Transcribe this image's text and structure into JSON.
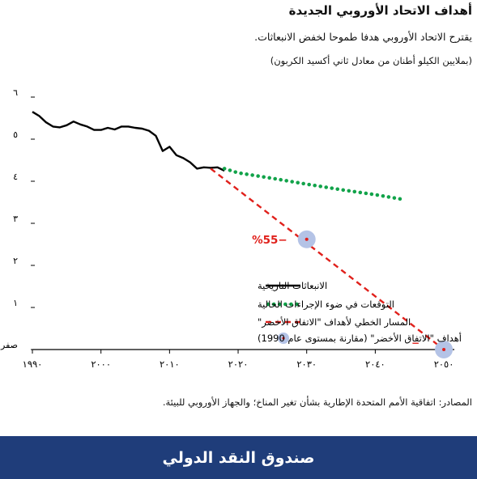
{
  "header": {
    "title": "أهداف الاتحاد الأوروبي الجديدة",
    "subtitle": "يقترح الاتحاد الأوروبي هدفا طموحا لخفض الانبعاثات.",
    "unit": "(بملايين الكيلو أطنان من معادل ثاني أكسيد الكربون)"
  },
  "chart_data": {
    "type": "line",
    "xlim": [
      1990,
      2052
    ],
    "ylim": [
      0,
      6
    ],
    "x_ticks": [
      1990,
      2000,
      2010,
      2020,
      2030,
      2040,
      2050
    ],
    "x_tick_labels": [
      "١٩٩٠",
      "٢٠٠٠",
      "٢٠١٠",
      "٢٠٢٠",
      "٢٠٣٠",
      "٢٠٤٠",
      "٢٠٥٠"
    ],
    "y_ticks": [
      0,
      1,
      2,
      3,
      4,
      5,
      6
    ],
    "y_tick_labels": [
      "صفر",
      "١",
      "٢",
      "٣",
      "٤",
      "٥",
      "٦"
    ],
    "series": [
      {
        "name": "الانبعاثات التاريخية",
        "style": "solid",
        "color": "#000000",
        "x": [
          1990,
          1991,
          1992,
          1993,
          1994,
          1995,
          1996,
          1997,
          1998,
          1999,
          2000,
          2001,
          2002,
          2003,
          2004,
          2005,
          2006,
          2007,
          2008,
          2009,
          2010,
          2011,
          2012,
          2013,
          2014,
          2015,
          2016,
          2017,
          2018
        ],
        "y": [
          5.65,
          5.55,
          5.4,
          5.3,
          5.28,
          5.33,
          5.42,
          5.35,
          5.3,
          5.22,
          5.22,
          5.27,
          5.23,
          5.3,
          5.3,
          5.27,
          5.25,
          5.2,
          5.08,
          4.72,
          4.82,
          4.62,
          4.55,
          4.45,
          4.3,
          4.33,
          4.32,
          4.33,
          4.25
        ]
      },
      {
        "name": "التوقعات في ضوء الإجراءات الحالية",
        "style": "dotted",
        "color": "#12a34a",
        "x": [
          2018,
          2020,
          2025,
          2030,
          2035,
          2040,
          2044
        ],
        "y": [
          4.3,
          4.2,
          4.07,
          3.93,
          3.8,
          3.68,
          3.57
        ]
      },
      {
        "name": "المسار الخطي لأهداف \"الاتفاق الأخضر\"",
        "style": "dashed",
        "color": "#e0201b",
        "x": [
          2016,
          2050
        ],
        "y": [
          4.3,
          0
        ]
      },
      {
        "name": "أهداف \"الاتفاق الأخضر\" (مقارنة بمستوى عام 1990)",
        "style": "marker",
        "color": "#b4c3e6",
        "x": [
          2030,
          2050
        ],
        "y": [
          2.62,
          0
        ]
      }
    ],
    "annotations": [
      {
        "text": "%55−",
        "x": 2030,
        "y": 2.62
      },
      {
        "text": "−",
        "x": 2050,
        "y": 0
      }
    ]
  },
  "source": "المصادر: اتفاقية الأمم المتحدة الإطارية بشأن تغير المناخ؛ والجهاز الأوروبي للبيئة.",
  "footer": {
    "label": "صندوق النقد الدولي"
  }
}
